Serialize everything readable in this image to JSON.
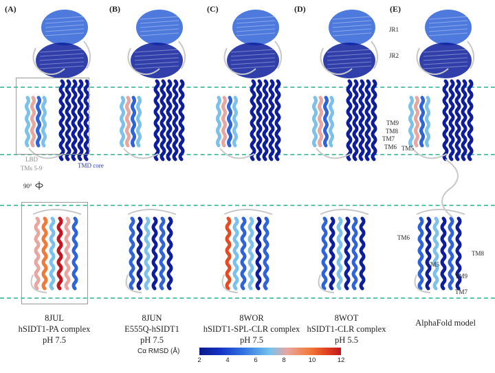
{
  "panels": [
    {
      "letter": "(A)",
      "caption": [
        "8JUL",
        "hSIDT1-PA complex",
        "pH 7.5"
      ]
    },
    {
      "letter": "(B)",
      "caption": [
        "8JUN",
        "E555Q-hSIDT1",
        "pH 7.5"
      ]
    },
    {
      "letter": "(C)",
      "caption": [
        "8WOR",
        "hSIDT1-SPL-CLR complex",
        "pH 7.5"
      ]
    },
    {
      "letter": "(D)",
      "caption": [
        "8WOT",
        "hSIDT1-CLR complex",
        "pH 5.5"
      ]
    },
    {
      "letter": "(E)",
      "caption": [
        "AlphaFold model"
      ]
    }
  ],
  "annotations": {
    "lbd": "LBD",
    "tms_5_9": "TMs 5-9",
    "tmd_core": "TMD core",
    "rotation": "90°",
    "jr1": "JR1",
    "jr2": "JR2",
    "top_tm_labels": [
      "TM9",
      "TM8",
      "TM7",
      "TM6",
      "TM5"
    ],
    "bottom_tm_labels": [
      "TM6",
      "TM5",
      "TM8",
      "TM9",
      "TM7"
    ]
  },
  "colorbar": {
    "title": "Cα RMSD (Å)",
    "ticks": [
      "2",
      "4",
      "6",
      "8",
      "10",
      "12"
    ],
    "colors": {
      "low": "#0a1a8a",
      "mid": "#76c3ec",
      "high": "#c4161e"
    }
  },
  "colors": {
    "membrane_lines": "#5ec4a8",
    "protein_dark_blue": "#0d1d9c",
    "protein_mid_blue": "#2f63d8",
    "protein_light_blue": "#7cc0ec",
    "protein_gray": "#c8c8c8"
  }
}
